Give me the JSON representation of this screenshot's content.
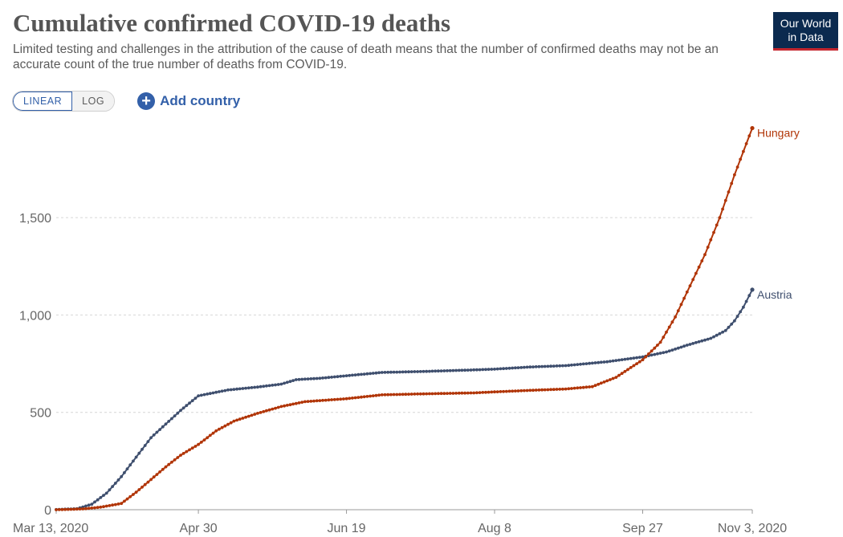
{
  "header": {
    "title": "Cumulative confirmed COVID-19 deaths",
    "subtitle": "Limited testing and challenges in the attribution of the cause of death means that the number of confirmed deaths may not be an accurate count of the true number of deaths from COVID-19."
  },
  "logo": {
    "line1": "Our World",
    "line2": "in Data"
  },
  "controls": {
    "linear_label": "LINEAR",
    "log_label": "LOG",
    "add_country_label": "Add country",
    "plus_symbol": "+"
  },
  "colors": {
    "austria": "#3f4f6e",
    "hungary": "#b13507",
    "grid": "#d6d6d6",
    "axis": "#999999"
  },
  "chart_data": {
    "type": "line",
    "title": "Cumulative confirmed COVID-19 deaths",
    "xlabel": "",
    "ylabel": "",
    "x_range": [
      "2020-03-13",
      "2020-11-03"
    ],
    "ylim": [
      0,
      1950
    ],
    "y_ticks": [
      0,
      500,
      1000,
      1500
    ],
    "y_tick_labels": [
      "0",
      "500",
      "1,000",
      "1,500"
    ],
    "x_ticks": [
      "2020-03-13",
      "2020-04-30",
      "2020-06-19",
      "2020-08-08",
      "2020-09-27",
      "2020-11-03"
    ],
    "x_tick_labels": [
      "Mar 13, 2020",
      "Apr 30",
      "Jun 19",
      "Aug 8",
      "Sep 27",
      "Nov 3, 2020"
    ],
    "grid": "horizontal dashed",
    "series": [
      {
        "name": "Austria",
        "points": [
          [
            "2020-03-13",
            1
          ],
          [
            "2020-03-20",
            5
          ],
          [
            "2020-03-25",
            28
          ],
          [
            "2020-03-30",
            85
          ],
          [
            "2020-04-04",
            170
          ],
          [
            "2020-04-09",
            270
          ],
          [
            "2020-04-14",
            370
          ],
          [
            "2020-04-19",
            440
          ],
          [
            "2020-04-24",
            510
          ],
          [
            "2020-04-30",
            585
          ],
          [
            "2020-05-10",
            615
          ],
          [
            "2020-05-20",
            630
          ],
          [
            "2020-05-28",
            645
          ],
          [
            "2020-06-02",
            668
          ],
          [
            "2020-06-10",
            675
          ],
          [
            "2020-06-19",
            688
          ],
          [
            "2020-07-01",
            705
          ],
          [
            "2020-07-15",
            710
          ],
          [
            "2020-08-01",
            718
          ],
          [
            "2020-08-08",
            722
          ],
          [
            "2020-08-20",
            733
          ],
          [
            "2020-09-01",
            740
          ],
          [
            "2020-09-15",
            760
          ],
          [
            "2020-09-27",
            785
          ],
          [
            "2020-10-05",
            810
          ],
          [
            "2020-10-12",
            845
          ],
          [
            "2020-10-20",
            880
          ],
          [
            "2020-10-25",
            920
          ],
          [
            "2020-10-28",
            970
          ],
          [
            "2020-10-31",
            1040
          ],
          [
            "2020-11-03",
            1130
          ]
        ]
      },
      {
        "name": "Hungary",
        "points": [
          [
            "2020-03-13",
            0
          ],
          [
            "2020-03-22",
            4
          ],
          [
            "2020-03-28",
            13
          ],
          [
            "2020-04-04",
            32
          ],
          [
            "2020-04-09",
            90
          ],
          [
            "2020-04-14",
            155
          ],
          [
            "2020-04-19",
            220
          ],
          [
            "2020-04-24",
            280
          ],
          [
            "2020-04-30",
            335
          ],
          [
            "2020-05-06",
            405
          ],
          [
            "2020-05-12",
            455
          ],
          [
            "2020-05-20",
            495
          ],
          [
            "2020-05-28",
            530
          ],
          [
            "2020-06-05",
            555
          ],
          [
            "2020-06-19",
            570
          ],
          [
            "2020-07-01",
            590
          ],
          [
            "2020-07-15",
            595
          ],
          [
            "2020-08-01",
            600
          ],
          [
            "2020-08-08",
            605
          ],
          [
            "2020-08-20",
            613
          ],
          [
            "2020-09-01",
            620
          ],
          [
            "2020-09-10",
            632
          ],
          [
            "2020-09-18",
            680
          ],
          [
            "2020-09-27",
            770
          ],
          [
            "2020-10-03",
            860
          ],
          [
            "2020-10-08",
            990
          ],
          [
            "2020-10-13",
            1150
          ],
          [
            "2020-10-18",
            1310
          ],
          [
            "2020-10-23",
            1500
          ],
          [
            "2020-10-28",
            1720
          ],
          [
            "2020-11-01",
            1880
          ],
          [
            "2020-11-03",
            1960
          ]
        ]
      }
    ]
  }
}
